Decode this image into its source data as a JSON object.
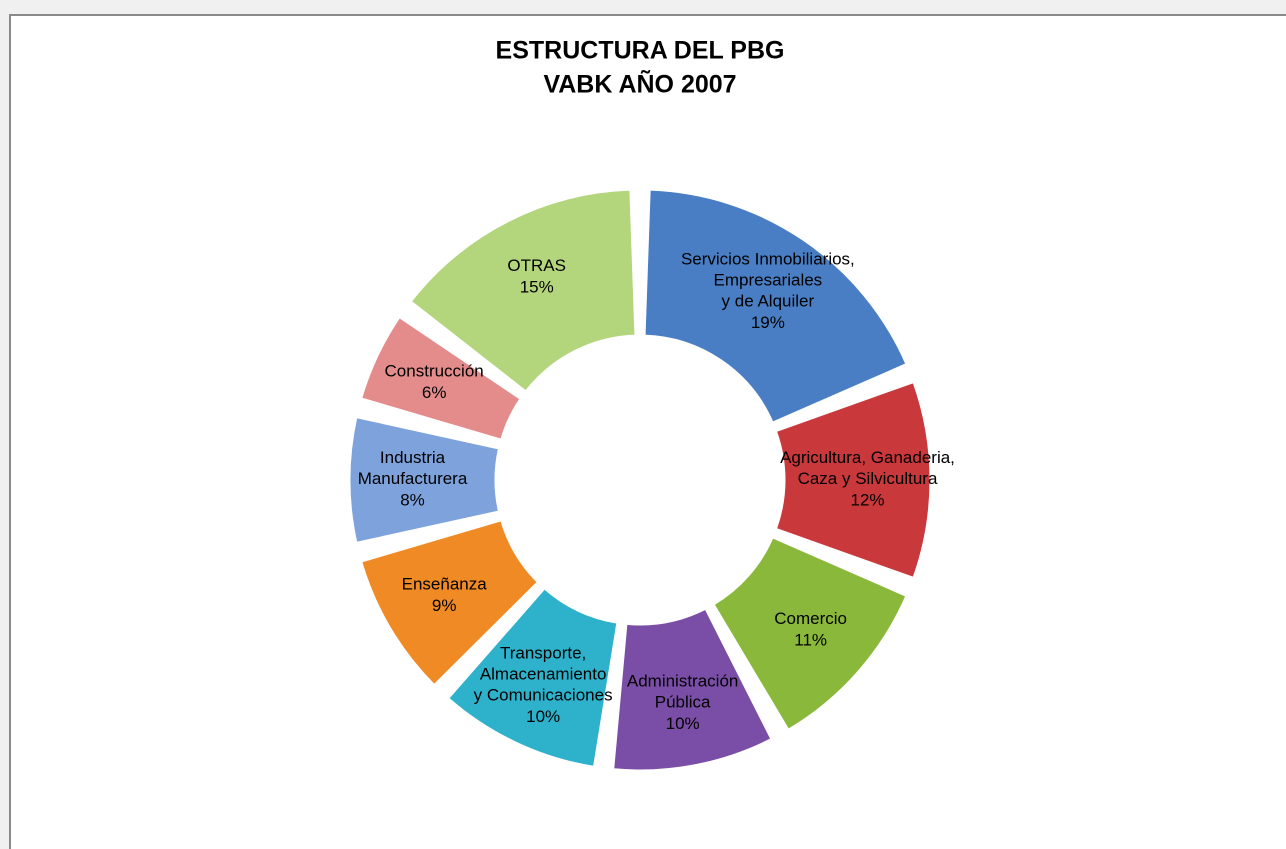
{
  "chart_data": {
    "type": "doughnut",
    "title": "ESTRUCTURA DEL PBG",
    "subtitle": "VABK AÑO 2007",
    "categories": [
      "Servicios Inmobiliarios,\nEmpresariales\ny de Alquiler",
      "Agricultura, Ganaderia,\nCaza y Silvicultura",
      "Comercio",
      "Administración\nPública",
      "Transporte,\nAlmacenamiento\ny Comunicaciones",
      "Enseñanza",
      "Industria\nManufacturera",
      "Construcción",
      "OTRAS"
    ],
    "values": [
      19,
      12,
      11,
      10,
      10,
      9,
      8,
      6,
      15
    ],
    "value_labels": [
      "19%",
      "12%",
      "11%",
      "10%",
      "10%",
      "9%",
      "8%",
      "6%",
      "15%"
    ],
    "colors": [
      "#4a7ec4",
      "#c9383a",
      "#8ab83a",
      "#7a4ea6",
      "#2eb2cc",
      "#f08a24",
      "#7ea2dc",
      "#e48c8c",
      "#b3d57c"
    ]
  }
}
